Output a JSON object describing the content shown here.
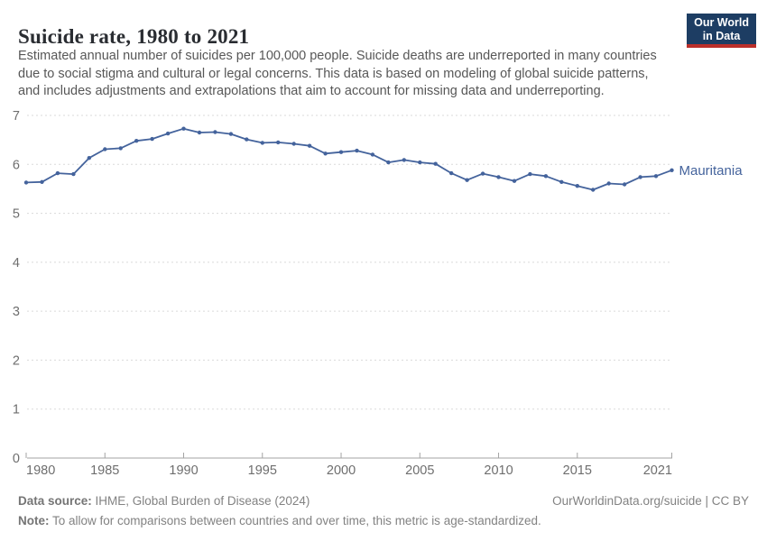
{
  "header": {
    "title": "Suicide rate, 1980 to 2021",
    "subtitle_lines": [
      "Estimated annual number of suicides per 100,000 people. Suicide deaths are underreported in many countries",
      "due to social stigma and cultural or legal concerns. This data is based on modeling of global suicide patterns,",
      "and includes adjustments and extrapolations that aim to account for missing data and underreporting."
    ]
  },
  "logo": {
    "line1": "Our World",
    "line2": "in Data",
    "navy": "#1d3d63",
    "red": "#bb2f2a"
  },
  "chart_data": {
    "type": "line",
    "title": "Suicide rate, 1980 to 2021",
    "xlabel": "",
    "ylabel": "",
    "ylim": [
      0,
      7
    ],
    "yticks": [
      0,
      1,
      2,
      3,
      4,
      5,
      6,
      7
    ],
    "xticks": [
      1980,
      1985,
      1990,
      1995,
      2000,
      2005,
      2010,
      2015,
      2021
    ],
    "grid": "horizontal-dashed",
    "legend_position": "end-of-line-label",
    "x": [
      1980,
      1981,
      1982,
      1983,
      1984,
      1985,
      1986,
      1987,
      1988,
      1989,
      1990,
      1991,
      1992,
      1993,
      1994,
      1995,
      1996,
      1997,
      1998,
      1999,
      2000,
      2001,
      2002,
      2003,
      2004,
      2005,
      2006,
      2007,
      2008,
      2009,
      2010,
      2011,
      2012,
      2013,
      2014,
      2015,
      2016,
      2017,
      2018,
      2019,
      2020,
      2021
    ],
    "series": [
      {
        "name": "Mauritania",
        "color": "#44639c",
        "values": [
          5.63,
          5.64,
          5.82,
          5.8,
          6.13,
          6.31,
          6.33,
          6.48,
          6.52,
          6.63,
          6.73,
          6.65,
          6.66,
          6.62,
          6.51,
          6.44,
          6.45,
          6.42,
          6.38,
          6.22,
          6.25,
          6.28,
          6.2,
          6.04,
          6.09,
          6.04,
          6.01,
          5.82,
          5.68,
          5.81,
          5.74,
          5.66,
          5.8,
          5.76,
          5.64,
          5.56,
          5.48,
          5.61,
          5.59,
          5.74,
          5.76,
          5.88
        ]
      }
    ],
    "end_label": "Mauritania",
    "colors": {
      "line": "#44639c",
      "gridline": "#dadada",
      "axis": "#a3a3a3",
      "tick_text": "#6e6e6e"
    }
  },
  "footer": {
    "datasource_label": "Data source:",
    "datasource_value": " IHME, Global Burden of Disease (2024)",
    "rights": "OurWorldinData.org/suicide | CC BY",
    "note_label": "Note:",
    "note_value": " To allow for comparisons between countries and over time, this metric is age-standardized."
  }
}
